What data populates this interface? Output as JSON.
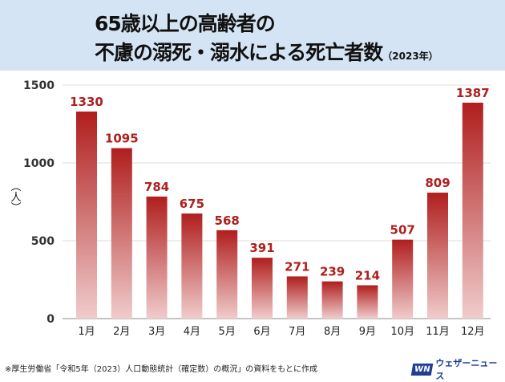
{
  "chart_data": {
    "type": "bar",
    "title_line1": "65歳以上の高齢者の",
    "title_line2": "不慮の溺死・溺水による死亡者数",
    "title_year": "（2023年）",
    "ylabel": "（人）",
    "categories": [
      "1月",
      "2月",
      "3月",
      "4月",
      "5月",
      "6月",
      "7月",
      "8月",
      "9月",
      "10月",
      "11月",
      "12月"
    ],
    "values": [
      1330,
      1095,
      784,
      675,
      568,
      391,
      271,
      239,
      214,
      507,
      809,
      1387
    ],
    "ylim": [
      0,
      1500
    ],
    "yticks": [
      0,
      500,
      1000,
      1500
    ],
    "grid": true,
    "bar_color": "#b01e1e",
    "label_color": "#b01e1e"
  },
  "footnote": "※厚生労働省「令和5年（2023）人口動態統計（確定数）の概況」の資料をもとに作成",
  "logo": {
    "mark": "WN",
    "text": "ウェザーニュース"
  }
}
